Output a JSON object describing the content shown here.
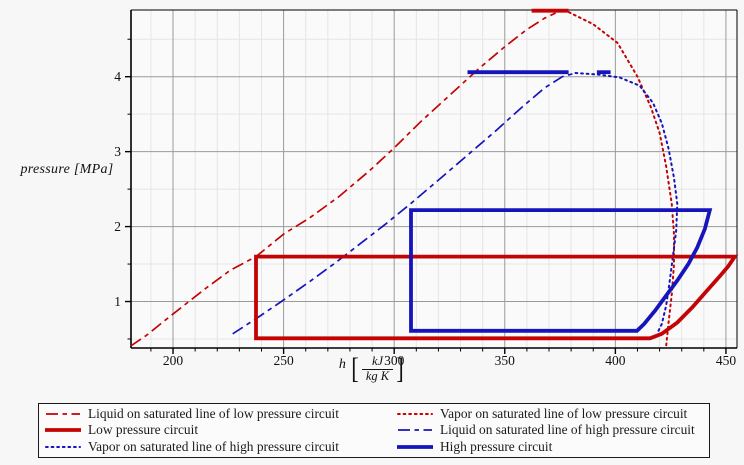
{
  "chart_data": {
    "type": "line",
    "title": "",
    "xlabel": {
      "var": "h",
      "unit_num": "kJ",
      "unit_den": "kg K",
      "brackets": [
        "[",
        "]"
      ]
    },
    "ylabel_text": "pressure [MPa]",
    "x_range": [
      181,
      455
    ],
    "y_range": [
      0.38,
      4.89
    ],
    "x_ticks": [
      200,
      250,
      300,
      350,
      400,
      450
    ],
    "y_ticks": [
      1,
      2,
      3,
      4
    ],
    "x_minor_step": 10,
    "y_minor_step": 0.5,
    "grid": true,
    "legend_position": "bottom",
    "colors": {
      "red": "#c40404",
      "blue": "#1515bb",
      "grid_major": "#9a9a9a",
      "grid_minor": "#e5e5e8",
      "axis": "#000000",
      "plot_fill": "#fafafa"
    },
    "series": [
      {
        "name": "Liquid on saturated line of low pressure circuit",
        "color": "#c40404",
        "style": "long-dash",
        "paths": [
          [
            [
              181,
              0.41
            ],
            [
              188,
              0.55
            ],
            [
              196,
              0.74
            ],
            [
              205,
              0.95
            ],
            [
              215,
              1.18
            ],
            [
              226,
              1.42
            ],
            [
              237.5,
              1.6
            ],
            [
              250,
              1.9
            ],
            [
              262,
              2.12
            ],
            [
              275,
              2.4
            ],
            [
              289,
              2.75
            ],
            [
              300,
              3.05
            ],
            [
              312,
              3.4
            ],
            [
              325,
              3.75
            ],
            [
              338,
              4.1
            ],
            [
              350,
              4.4
            ],
            [
              360,
              4.63
            ],
            [
              368,
              4.78
            ],
            [
              373,
              4.85
            ]
          ]
        ]
      },
      {
        "name": "Vapor on saturated line of low pressure circuit",
        "color": "#c40404",
        "style": "dot",
        "paths": [
          [
            [
              379,
              4.86
            ],
            [
              390,
              4.7
            ],
            [
              401,
              4.45
            ],
            [
              410,
              4.0
            ],
            [
              416,
              3.6
            ],
            [
              420,
              3.25
            ],
            [
              423,
              2.8
            ],
            [
              425.5,
              2.3
            ],
            [
              426.5,
              1.9
            ],
            [
              426.5,
              1.5
            ],
            [
              425.5,
              1.1
            ],
            [
              424,
              0.7
            ],
            [
              423,
              0.41
            ]
          ]
        ]
      },
      {
        "name": "Low pressure circuit",
        "color": "#c40404",
        "style": "solid",
        "paths": [
          [
            [
              237.5,
              1.6
            ],
            [
              237.5,
              0.51
            ],
            [
              415.7,
              0.51
            ],
            [
              421,
              0.57
            ],
            [
              428,
              0.72
            ],
            [
              435,
              0.93
            ],
            [
              441,
              1.13
            ],
            [
              447,
              1.33
            ],
            [
              451,
              1.47
            ],
            [
              454,
              1.6
            ],
            [
              237.5,
              1.6
            ]
          ],
          [
            [
              363,
              4.88
            ],
            [
              378,
              4.88
            ]
          ]
        ]
      },
      {
        "name": "Liquid on saturated line of high pressure circuit",
        "color": "#1515bb",
        "style": "long-dash",
        "paths": [
          [
            [
              227,
              0.57
            ],
            [
              238,
              0.78
            ],
            [
              250,
              1.02
            ],
            [
              262,
              1.27
            ],
            [
              274,
              1.53
            ],
            [
              285,
              1.78
            ],
            [
              296,
              2.03
            ],
            [
              308,
              2.32
            ],
            [
              320,
              2.62
            ],
            [
              333,
              2.95
            ],
            [
              346,
              3.28
            ],
            [
              358,
              3.6
            ],
            [
              368,
              3.85
            ],
            [
              376,
              4.0
            ],
            [
              382,
              4.05
            ]
          ]
        ]
      },
      {
        "name": "Vapor on saturated line of high pressure circuit",
        "color": "#1515bb",
        "style": "dot",
        "paths": [
          [
            [
              382,
              4.05
            ],
            [
              392,
              4.03
            ],
            [
              402,
              3.99
            ],
            [
              411,
              3.88
            ],
            [
              417,
              3.65
            ],
            [
              421,
              3.38
            ],
            [
              424,
              3.05
            ],
            [
              426.5,
              2.65
            ],
            [
              428,
              2.3
            ],
            [
              427.5,
              1.95
            ],
            [
              426,
              1.6
            ],
            [
              424.5,
              1.25
            ],
            [
              423,
              0.95
            ],
            [
              421,
              0.7
            ],
            [
              419.5,
              0.61
            ]
          ]
        ]
      },
      {
        "name": "High pressure circuit",
        "color": "#1515bb",
        "style": "solid",
        "paths": [
          [
            [
              307.6,
              2.22
            ],
            [
              307.6,
              0.61
            ],
            [
              409.8,
              0.61
            ],
            [
              413,
              0.7
            ],
            [
              418,
              0.88
            ],
            [
              423,
              1.08
            ],
            [
              428,
              1.28
            ],
            [
              433,
              1.5
            ],
            [
              437,
              1.72
            ],
            [
              440.5,
              1.97
            ],
            [
              442.7,
              2.22
            ],
            [
              307.6,
              2.22
            ]
          ],
          [
            [
              334,
              4.06
            ],
            [
              378,
              4.06
            ]
          ],
          [
            [
              392.5,
              4.06
            ],
            [
              397,
              4.06
            ]
          ]
        ]
      }
    ]
  },
  "legend": {
    "items": [
      {
        "label": "Liquid on saturated line of low pressure circuit",
        "series": 0
      },
      {
        "label": "Vapor on saturated line of low pressure circuit",
        "series": 1
      },
      {
        "label": "Low pressure circuit",
        "series": 2
      },
      {
        "label": "Liquid on saturated line of high pressure circuit",
        "series": 3
      },
      {
        "label": "Vapor on saturated line of high pressure circuit",
        "series": 4
      },
      {
        "label": "High pressure circuit",
        "series": 5
      }
    ]
  }
}
